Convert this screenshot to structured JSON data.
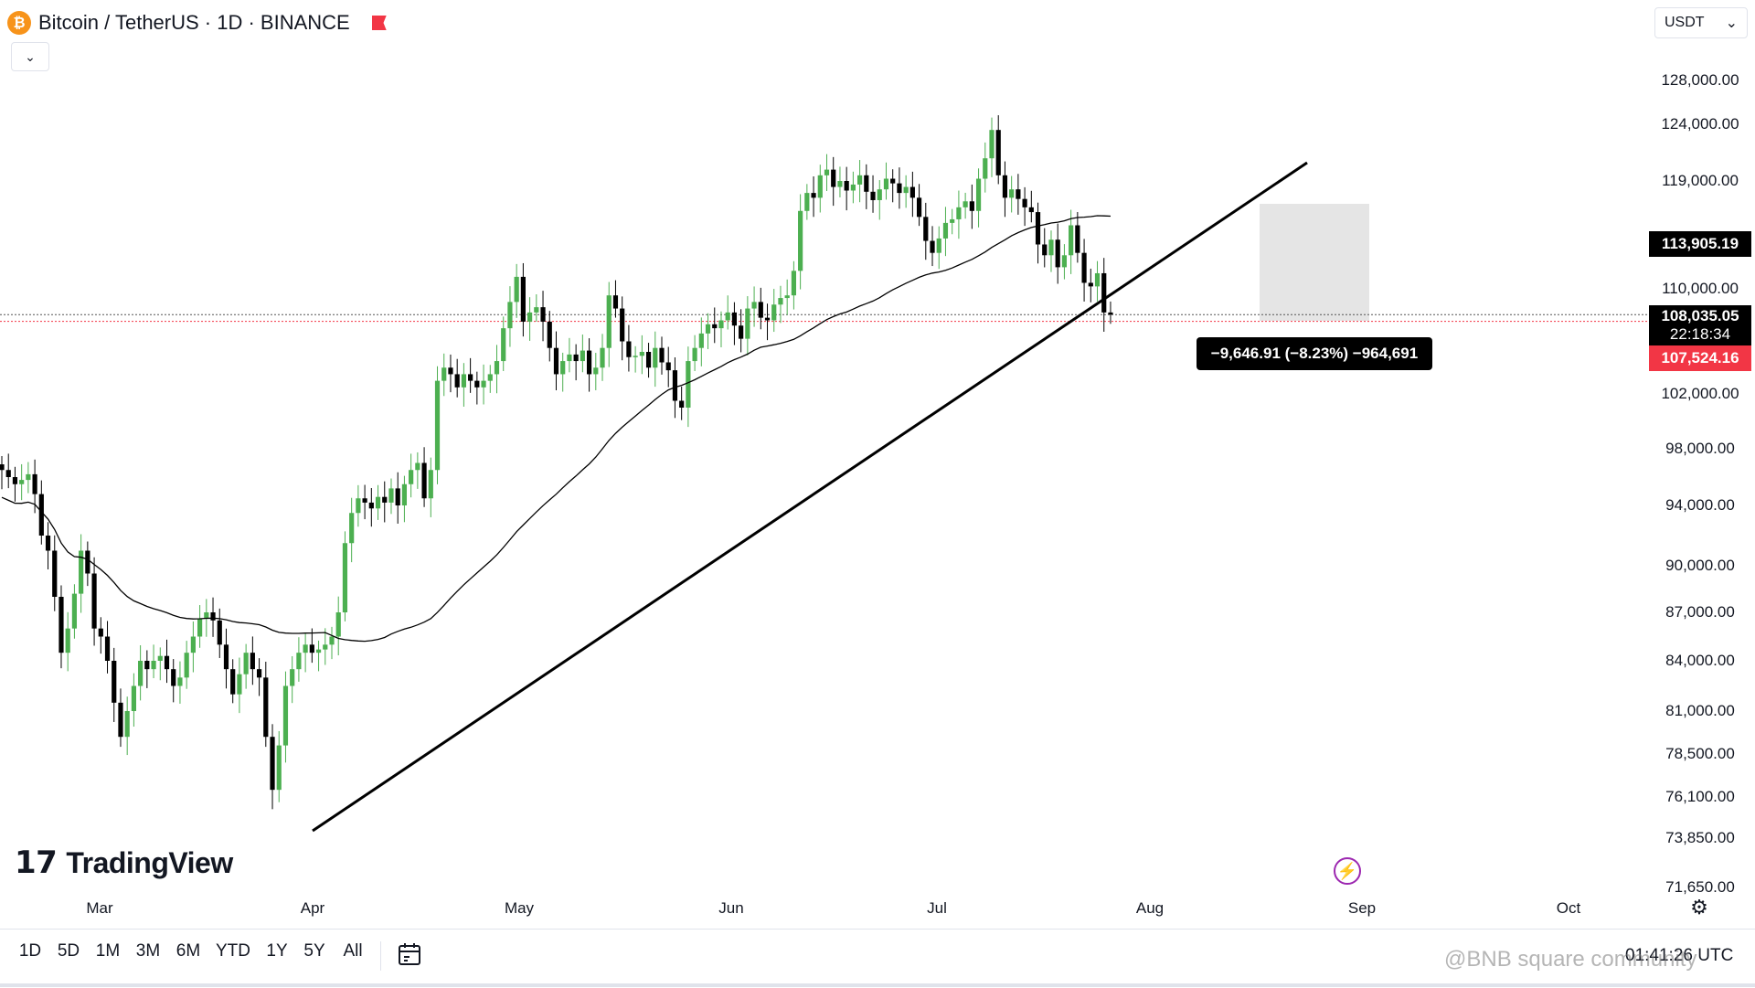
{
  "header": {
    "symbol": "Bitcoin / TetherUS · 1D · BINANCE",
    "logo_letter": "₿",
    "collapse_icon": "chevron-down-icon"
  },
  "currency_selector": {
    "value": "USDT",
    "icon": "chevron-down-icon"
  },
  "price_axis": {
    "ticks": [
      "128,000.00",
      "124,000.00",
      "119,000.00",
      "110,000.00",
      "102,000.00",
      "98,000.00",
      "94,000.00",
      "90,000.00",
      "87,000.00",
      "84,000.00",
      "81,000.00",
      "78,500.00",
      "76,100.00",
      "73,850.00",
      "71,650.00"
    ],
    "ma_tag": "113,905.19",
    "current_price": "108,035.05",
    "countdown": "22:18:34",
    "low_tag": "107,524.16"
  },
  "measure_label": "−9,646.91 (−8.23%) −964,691",
  "time_axis": [
    "Mar",
    "Apr",
    "May",
    "Jun",
    "Jul",
    "Aug",
    "Sep",
    "Oct"
  ],
  "branding": {
    "name": "TradingView",
    "mark": "17"
  },
  "range_buttons": [
    "1D",
    "5D",
    "1M",
    "3M",
    "6M",
    "YTD",
    "1Y",
    "5Y",
    "All"
  ],
  "clock": "01:41:26 UTC",
  "watermark": "@BNB square community",
  "colors": {
    "up": "#4caf50",
    "down": "#000000",
    "tag_dark": "#000000",
    "tag_red": "#f23645",
    "accent": "#9c27b0"
  },
  "chart_data": {
    "type": "candlestick",
    "symbol": "BTCUSDT",
    "interval": "1D",
    "x_ticks": [
      "Mar",
      "Apr",
      "May",
      "Jun",
      "Jul",
      "Aug",
      "Sep",
      "Oct"
    ],
    "ylim": [
      70500,
      131000
    ],
    "y_ticks": [
      128000,
      124000,
      119000,
      110000,
      102000,
      98000,
      94000,
      90000,
      87000,
      84000,
      81000,
      78500,
      76100,
      73850,
      71650
    ],
    "close_path": [
      96500,
      96000,
      95500,
      95800,
      96200,
      94800,
      92000,
      91000,
      88000,
      84500,
      86000,
      88200,
      91000,
      89500,
      86000,
      85500,
      84000,
      81500,
      79500,
      81000,
      82500,
      84000,
      83500,
      84000,
      84300,
      83500,
      82500,
      83000,
      84500,
      85500,
      86600,
      87000,
      86500,
      85000,
      83500,
      82000,
      83200,
      84500,
      83500,
      83000,
      79500,
      76500,
      79000,
      82500,
      83500,
      84500,
      85000,
      84500,
      84700,
      85000,
      85500,
      87000,
      91500,
      93500,
      94500,
      94200,
      93800,
      94600,
      94200,
      95200,
      94000,
      95500,
      96500,
      97000,
      94500,
      96500,
      103000,
      104000,
      103500,
      102500,
      103500,
      103000,
      102500,
      103000,
      103500,
      104500,
      107000,
      109000,
      111000,
      107500,
      108200,
      108600,
      107500,
      105500,
      103500,
      104500,
      105000,
      104500,
      105300,
      103500,
      104000,
      105500,
      109500,
      108500,
      106000,
      104800,
      104900,
      105200,
      104000,
      105500,
      104400,
      103800,
      101500,
      101000,
      104500,
      105500,
      106600,
      107300,
      107000,
      107600,
      108200,
      107200,
      106200,
      108500,
      109000,
      107800,
      107600,
      108800,
      109300,
      109500,
      111500,
      116500,
      118000,
      117600,
      119500,
      120000,
      118500,
      119000,
      118200,
      118700,
      119500,
      118100,
      117400,
      118300,
      119200,
      118800,
      118000,
      118500,
      117600,
      116000,
      114000,
      113000,
      114200,
      115500,
      115800,
      116800,
      117300,
      116500,
      119200,
      121000,
      123500,
      119500,
      117600,
      118300,
      117500,
      116800,
      116400,
      113700,
      112800,
      114100,
      111800,
      112800,
      115300,
      113000,
      110500,
      110200,
      111300,
      108200,
      108035.05
    ],
    "series": [
      {
        "name": "MA",
        "kind": "moving-average",
        "last": 113905.19
      },
      {
        "name": "trendline",
        "from": [
          "Apr",
          73000
        ],
        "to": [
          "Aug",
          122000
        ]
      }
    ],
    "annotations": [
      {
        "type": "measure",
        "text": "−9,646.91 (−8.23%) −964,691",
        "from": 117682,
        "to": 108035.05
      },
      {
        "type": "price-line",
        "value": 108035.05
      },
      {
        "type": "price-line",
        "value": 107524.16
      }
    ],
    "grid": false,
    "legend": "none"
  }
}
